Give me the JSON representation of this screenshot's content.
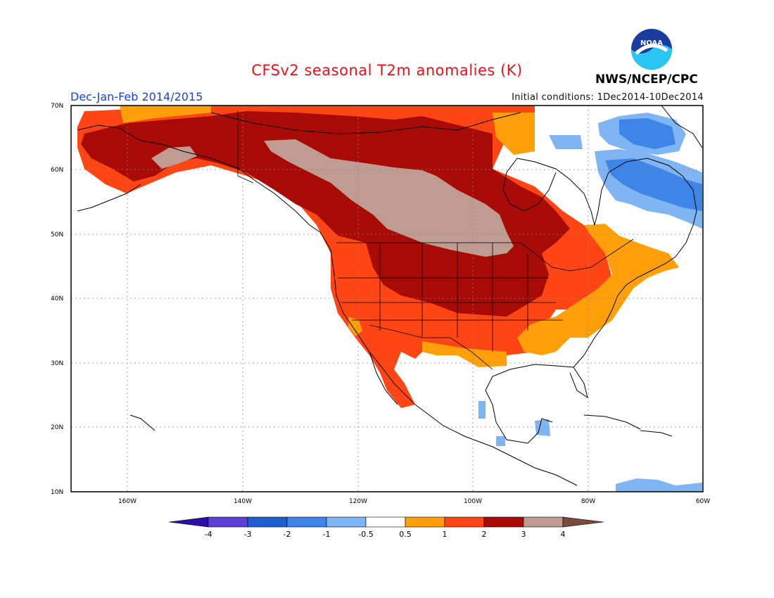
{
  "header": {
    "title": "CFSv2 seasonal T2m anomalies (K)",
    "season": "Dec-Jan-Feb 2014/2015",
    "initial_conditions": "Initial conditions: 1Dec2014-10Dec2014",
    "agency": "NWS/NCEP/CPC",
    "logo_text": "NOAA"
  },
  "map": {
    "extent": {
      "lon": [
        -172,
        -60
      ],
      "lat": [
        10,
        70
      ]
    },
    "lat_labels": [
      "70N",
      "60N",
      "50N",
      "40N",
      "30N",
      "20N",
      "10N"
    ],
    "lon_labels": [
      "160W",
      "140W",
      "120W",
      "100W",
      "80W",
      "60W"
    ],
    "grid": "dotted"
  },
  "colorbar": {
    "labels": [
      "-4",
      "-3",
      "-2",
      "-1",
      "-0.5",
      "0.5",
      "1",
      "2",
      "3",
      "4"
    ],
    "colors": [
      "#2c0da6",
      "#5b3fd6",
      "#1e5fd0",
      "#3d86e8",
      "#7fb5f2",
      "#ffffff",
      "#ff9f0a",
      "#ff4514",
      "#a80a06",
      "#c09b91",
      "#7a4b3c"
    ]
  },
  "anomaly_regions": [
    {
      "name": "alaska-core",
      "value_class": "2-3",
      "color": "#a80a06"
    },
    {
      "name": "canada-prairies",
      "value_class": "3-4",
      "color": "#c09b91"
    },
    {
      "name": "west-canada",
      "value_class": "2-3",
      "color": "#a80a06"
    },
    {
      "name": "arctic-rim",
      "value_class": "1-2",
      "color": "#ff4514"
    },
    {
      "name": "western-us",
      "value_class": "1-2",
      "color": "#ff4514"
    },
    {
      "name": "northern-plains",
      "value_class": "2-3",
      "color": "#a80a06"
    },
    {
      "name": "southeast-us",
      "value_class": "0.5-1",
      "color": "#ff9f0a"
    },
    {
      "name": "northeast-canada",
      "value_class": "-1 to -0.5",
      "color": "#7fb5f2"
    },
    {
      "name": "labrador",
      "value_class": "-2 to -1",
      "color": "#3d86e8"
    }
  ]
}
